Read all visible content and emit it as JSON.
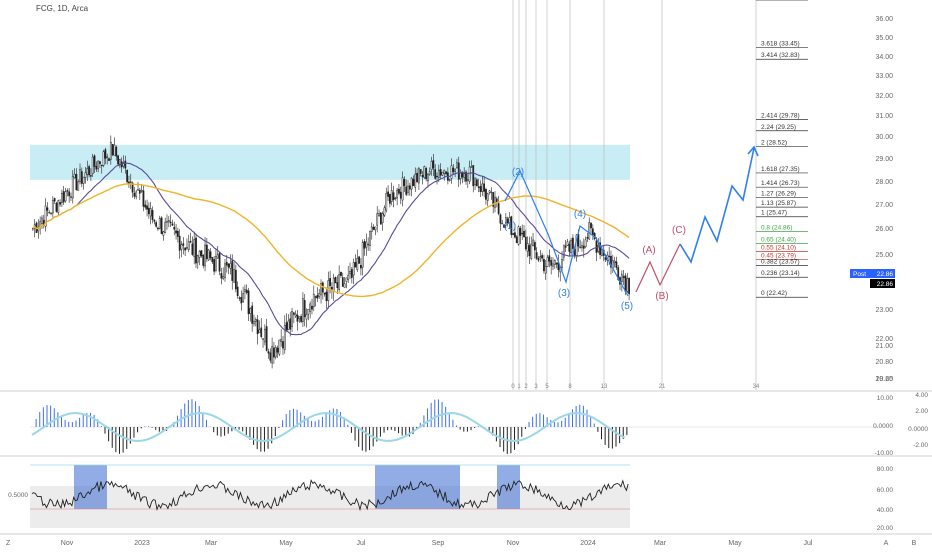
{
  "header": {
    "symbol_title": "FCG, 1D, Arca"
  },
  "colors": {
    "candle": "#222222",
    "ma_fast": "#5b4a9b",
    "ma_slow": "#f0b429",
    "resistance_zone": "#bfeaf3",
    "fib_text": "#333333",
    "fib_green": "#3fa648",
    "fib_red": "#c0392b",
    "wave_blue": "#2f80ed",
    "wave_red": "#c0506a",
    "projection": "#2f80ed",
    "histogram_pos": "#3d6ff0",
    "histogram_neg": "#222222",
    "rsi_box": "#4a74d6",
    "rsi_band": "#e0e0e0",
    "price_label_bg": "#2962ff",
    "last_price_bg": "#000000"
  },
  "price_axis": {
    "ticks": [
      "36.00",
      "35.00",
      "34.00",
      "33.00",
      "32.00",
      "31.00",
      "30.00",
      "29.00",
      "28.00",
      "27.00",
      "26.00",
      "25.00",
      "24.00",
      "23.00",
      "22.00",
      "21.00",
      "20.80",
      "20.20",
      "19.65"
    ]
  },
  "price_labels": {
    "post_label": "Post",
    "post_value": "22.86",
    "last_value": "22.86"
  },
  "time_axis": {
    "labels": [
      "Nov",
      "2023",
      "Mar",
      "May",
      "Jul",
      "Sep",
      "Nov",
      "2024",
      "Mar",
      "May",
      "Jul"
    ],
    "corner_left": "Z",
    "corner_right_a": "A",
    "corner_right_b": "B"
  },
  "cycle_numbers": [
    "0",
    "1",
    "2",
    "3",
    "5",
    "8",
    "13",
    "21",
    "34"
  ],
  "fib_levels": [
    {
      "label": "3.618 (33.45)",
      "price": 33.45,
      "color": "text"
    },
    {
      "label": "3.414 (32.83)",
      "price": 32.83,
      "color": "text"
    },
    {
      "label": "2.414 (29.78)",
      "price": 29.78,
      "color": "text"
    },
    {
      "label": "2.24 (29.25)",
      "price": 29.25,
      "color": "text"
    },
    {
      "label": "2 (28.52)",
      "price": 28.52,
      "color": "text"
    },
    {
      "label": "1.618 (27.35)",
      "price": 27.35,
      "color": "text"
    },
    {
      "label": "1.414 (26.73)",
      "price": 26.73,
      "color": "text"
    },
    {
      "label": "1.27 (26.29)",
      "price": 26.29,
      "color": "text"
    },
    {
      "label": "1.13 (25.87)",
      "price": 25.87,
      "color": "text"
    },
    {
      "label": "1 (25.47)",
      "price": 25.47,
      "color": "text"
    },
    {
      "label": "0.8 (24.86)",
      "price": 24.86,
      "color": "green"
    },
    {
      "label": "0.65 (24.40)",
      "price": 24.4,
      "color": "green"
    },
    {
      "label": "0.55 (24.10)",
      "price": 24.1,
      "color": "red"
    },
    {
      "label": "0.45 (23.79)",
      "price": 23.79,
      "color": "red"
    },
    {
      "label": "0.382 (23.57)",
      "price": 23.57,
      "color": "text"
    },
    {
      "label": "0.236 (23.14)",
      "price": 23.14,
      "color": "text"
    },
    {
      "label": "0 (22.42)",
      "price": 22.42,
      "color": "text"
    }
  ],
  "wave_labels": [
    "(1)",
    "(2)",
    "(3)",
    "(4)",
    "(5)",
    "(A)",
    "(B)",
    "(C)"
  ],
  "osc1_axis": {
    "left": [
      "10.00",
      "0.0000",
      "-10.00"
    ],
    "right": [
      "4.00",
      "2.00",
      "0.0000",
      "-2.00"
    ]
  },
  "osc2_axis": {
    "left": [
      "0.5000"
    ],
    "right": [
      "80.00",
      "60.00",
      "40.00",
      "20.00"
    ]
  },
  "chart_data": {
    "type": "line",
    "title": "FCG, 1D, Arca",
    "x": [
      "2022-11",
      "2022-12",
      "2023-01",
      "2023-02",
      "2023-03",
      "2023-04",
      "2023-05",
      "2023-06",
      "2023-07",
      "2023-08",
      "2023-09",
      "2023-10",
      "2023-11",
      "2023-12",
      "2024-01",
      "2024-02"
    ],
    "series": [
      {
        "values": [
          25.0,
          26.8,
          28.4,
          25.4,
          24.2,
          23.3,
          20.6,
          22.4,
          23.0,
          26.4,
          27.5,
          27.4,
          25.0,
          23.5,
          24.8,
          22.9
        ]
      }
    ],
    "ylim": [
      19.65,
      36.0
    ],
    "grid": false,
    "legend": "none"
  }
}
